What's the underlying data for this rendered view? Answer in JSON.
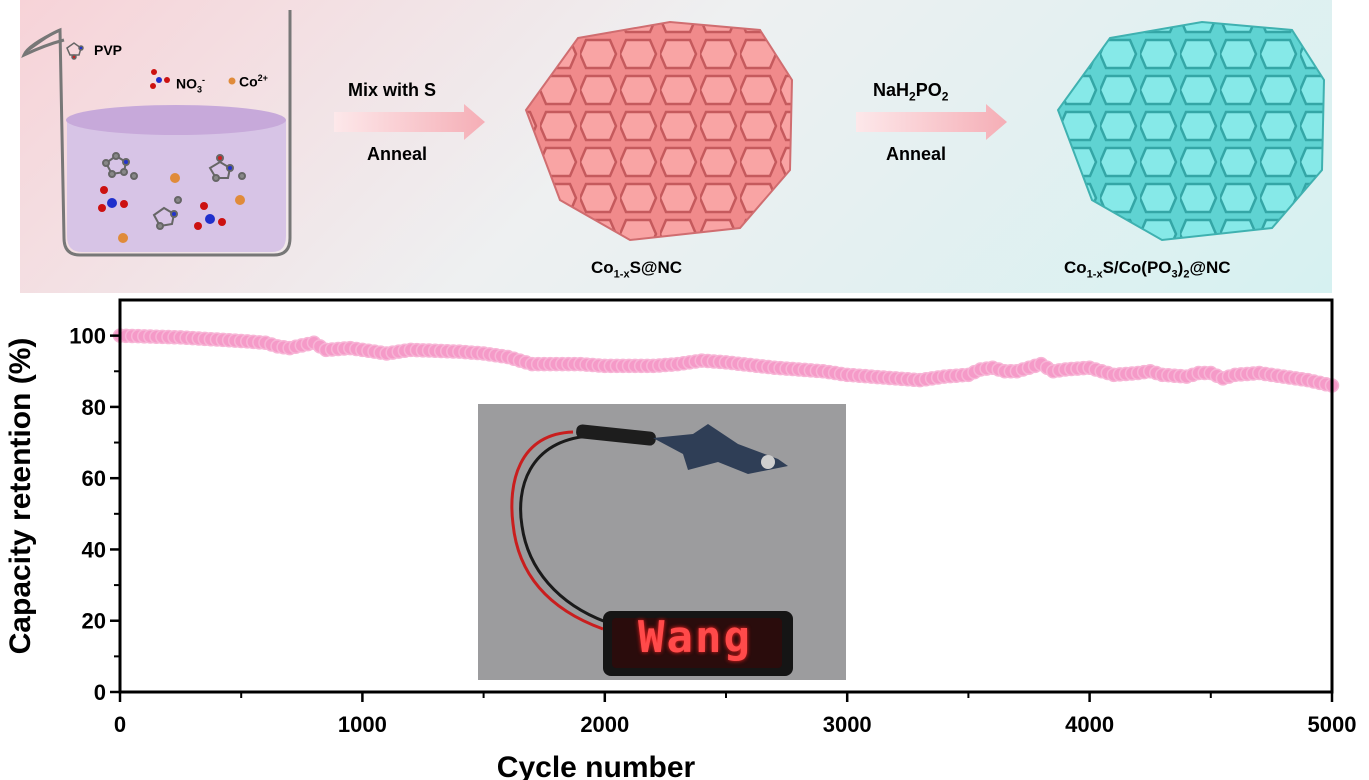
{
  "scheme": {
    "legend": {
      "pvp": "PVP",
      "nitrate": "NO",
      "nitrate_sub": "3",
      "nitrate_sup": "-",
      "cobalt": "Co",
      "cobalt_sup": "2+"
    },
    "step1": {
      "top": "Mix with S",
      "bottom": "Anneal"
    },
    "step2": {
      "top_main": "NaH",
      "top_sub1": "2",
      "top_mid": "PO",
      "top_sub2": "2",
      "bottom": "Anneal"
    },
    "product1": {
      "a": "Co",
      "sub": "1-x",
      "b": "S@NC"
    },
    "product2": {
      "a": "Co",
      "sub": "1-x",
      "b": "S/Co(PO",
      "sub2": "3",
      "c": ")",
      "sub3": "2",
      "d": "@NC"
    },
    "colors": {
      "pink": "#f08383",
      "cyan": "#6fdedd",
      "solution": "#d7c4e6"
    }
  },
  "inset": {
    "led_text": "Wang"
  },
  "chart_data": {
    "type": "scatter",
    "xlabel": "Cycle number",
    "ylabel": "Capacity retention (%)",
    "xlim": [
      0,
      5000
    ],
    "ylim": [
      0,
      110
    ],
    "xticks": [
      0,
      1000,
      2000,
      3000,
      4000,
      5000
    ],
    "yticks": [
      0,
      20,
      40,
      60,
      80,
      100
    ],
    "marker_color": "#f59ac8",
    "series": [
      {
        "points": [
          [
            0,
            100
          ],
          [
            250,
            99.5
          ],
          [
            500,
            98.5
          ],
          [
            600,
            98
          ],
          [
            650,
            97
          ],
          [
            700,
            96.5
          ],
          [
            800,
            98
          ],
          [
            850,
            96
          ],
          [
            950,
            96.5
          ],
          [
            1000,
            96
          ],
          [
            1100,
            95
          ],
          [
            1200,
            96
          ],
          [
            1400,
            95.5
          ],
          [
            1500,
            95
          ],
          [
            1600,
            94
          ],
          [
            1650,
            93
          ],
          [
            1700,
            92
          ],
          [
            1900,
            92
          ],
          [
            2000,
            91.5
          ],
          [
            2200,
            91.5
          ],
          [
            2300,
            92
          ],
          [
            2400,
            93
          ],
          [
            2500,
            92.5
          ],
          [
            2700,
            91
          ],
          [
            2800,
            90.5
          ],
          [
            2900,
            90
          ],
          [
            3000,
            89
          ],
          [
            3100,
            88.5
          ],
          [
            3200,
            88
          ],
          [
            3300,
            87.5
          ],
          [
            3400,
            88.5
          ],
          [
            3500,
            89
          ],
          [
            3550,
            90.5
          ],
          [
            3600,
            91
          ],
          [
            3650,
            90
          ],
          [
            3700,
            90
          ],
          [
            3800,
            92
          ],
          [
            3850,
            90
          ],
          [
            3900,
            90.5
          ],
          [
            4000,
            91
          ],
          [
            4100,
            89
          ],
          [
            4200,
            89.5
          ],
          [
            4250,
            90
          ],
          [
            4300,
            89
          ],
          [
            4400,
            88.5
          ],
          [
            4450,
            89.5
          ],
          [
            4500,
            89.5
          ],
          [
            4550,
            88
          ],
          [
            4600,
            89
          ],
          [
            4700,
            89.5
          ],
          [
            4800,
            88.5
          ],
          [
            4900,
            87.5
          ],
          [
            5000,
            86
          ]
        ]
      }
    ]
  }
}
